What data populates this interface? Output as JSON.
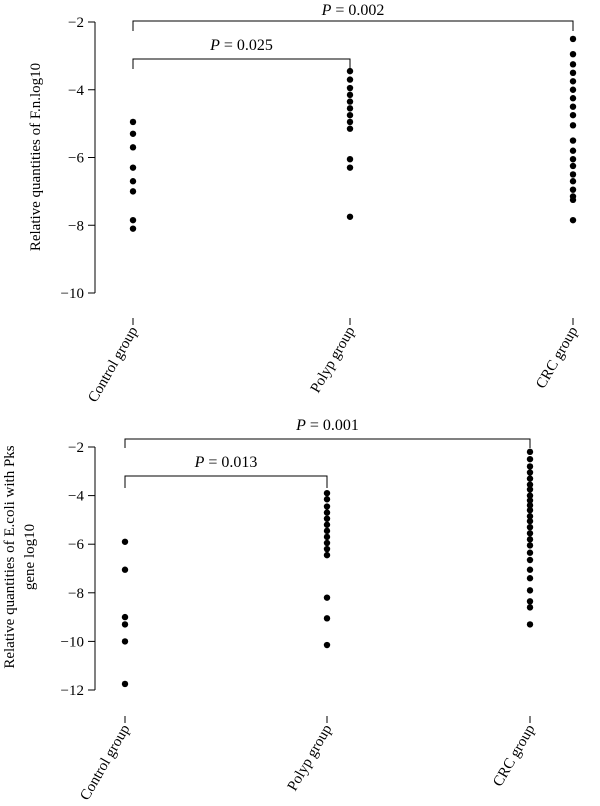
{
  "chart_data": [
    {
      "type": "scatter",
      "ylabel": "Relative quantities of F.n.log10",
      "ylim": [
        -10,
        -2
      ],
      "yticks": [
        -2,
        -4,
        -6,
        -8,
        -10
      ],
      "ytick_labels": [
        "−2",
        "−4",
        "−6",
        "−8",
        "−10"
      ],
      "categories": [
        "Control group",
        "Polyp group",
        "CRC group"
      ],
      "series": [
        {
          "values": [
            -4.95,
            -5.3,
            -5.7,
            -6.3,
            -6.7,
            -7.0,
            -7.85,
            -8.1
          ]
        },
        {
          "values": [
            -3.45,
            -3.7,
            -3.95,
            -4.15,
            -4.35,
            -4.55,
            -4.75,
            -4.95,
            -5.15,
            -6.05,
            -6.3,
            -7.75
          ]
        },
        {
          "values": [
            -2.5,
            -2.95,
            -3.25,
            -3.5,
            -3.75,
            -4.0,
            -4.25,
            -4.5,
            -4.75,
            -5.05,
            -5.5,
            -5.8,
            -6.05,
            -6.25,
            -6.5,
            -6.7,
            -6.95,
            -7.15,
            -7.25,
            -7.85
          ]
        }
      ],
      "annotations": [
        {
          "from": "Control group",
          "to": "Polyp group",
          "p_label": "P",
          "p_value": "= 0.025"
        },
        {
          "from": "Control group",
          "to": "CRC group",
          "p_label": "P",
          "p_value": "= 0.002"
        }
      ]
    },
    {
      "type": "scatter",
      "ylabel_lines": [
        "Relative quantities of E.coli with Pks",
        "gene log10"
      ],
      "ylim": [
        -12,
        -2
      ],
      "yticks": [
        -2,
        -4,
        -6,
        -8,
        -10,
        -12
      ],
      "ytick_labels": [
        "−2",
        "−4",
        "−6",
        "−8",
        "−10",
        "−12"
      ],
      "categories": [
        "Control group",
        "Polyp group",
        "CRC group"
      ],
      "series": [
        {
          "values": [
            -5.9,
            -7.05,
            -9.0,
            -9.3,
            -10.0,
            -11.75
          ]
        },
        {
          "values": [
            -3.9,
            -4.15,
            -4.45,
            -4.7,
            -4.95,
            -5.2,
            -5.45,
            -5.7,
            -5.95,
            -6.2,
            -6.45,
            -8.2,
            -9.05,
            -10.15
          ]
        },
        {
          "values": [
            -2.2,
            -2.5,
            -2.8,
            -3.05,
            -3.3,
            -3.55,
            -3.75,
            -4.0,
            -4.2,
            -4.4,
            -4.6,
            -4.85,
            -5.05,
            -5.3,
            -5.55,
            -5.8,
            -6.05,
            -6.35,
            -6.65,
            -7.05,
            -7.4,
            -7.9,
            -8.35,
            -8.6,
            -9.3
          ]
        }
      ],
      "annotations": [
        {
          "from": "Control group",
          "to": "Polyp group",
          "p_label": "P",
          "p_value": "= 0.013"
        },
        {
          "from": "Control group",
          "to": "CRC group",
          "p_label": "P",
          "p_value": "= 0.001"
        }
      ]
    }
  ]
}
